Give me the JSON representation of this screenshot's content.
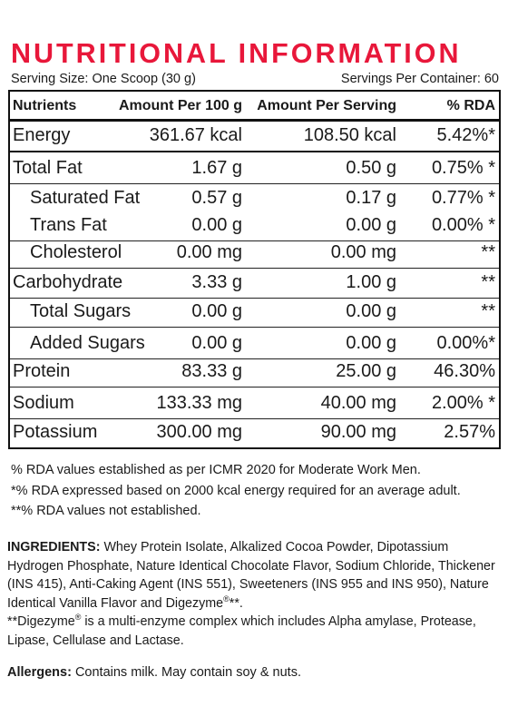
{
  "title": "NUTRITIONAL INFORMATION",
  "serving_size": "Serving Size: One Scoop (30 g)",
  "servings_per_container": "Servings Per Container: 60",
  "table": {
    "headers": [
      "Nutrients",
      "Amount Per 100 g",
      "Amount Per Serving",
      "% RDA"
    ],
    "rows": [
      {
        "nutrient": "Energy",
        "per100": "361.67 kcal",
        "perServing": "108.50 kcal",
        "rda": "5.42%*"
      },
      {
        "nutrient": "Total Fat",
        "per100": "1.67 g",
        "perServing": "0.50 g",
        "rda": "0.75% *"
      },
      {
        "nutrient": "Saturated Fat",
        "per100": "0.57 g",
        "perServing": "0.17 g",
        "rda": "0.77% *"
      },
      {
        "nutrient": "Trans Fat",
        "per100": "0.00 g",
        "perServing": "0.00 g",
        "rda": "0.00% *"
      },
      {
        "nutrient": "Cholesterol",
        "per100": "0.00 mg",
        "perServing": "0.00 mg",
        "rda": "**"
      },
      {
        "nutrient": "Carbohydrate",
        "per100": "3.33 g",
        "perServing": "1.00 g",
        "rda": "**"
      },
      {
        "nutrient": "Total Sugars",
        "per100": "0.00 g",
        "perServing": "0.00 g",
        "rda": "**"
      },
      {
        "nutrient": "Added Sugars",
        "per100": "0.00 g",
        "perServing": "0.00 g",
        "rda": "0.00%*"
      },
      {
        "nutrient": "Protein",
        "per100": "83.33 g",
        "perServing": "25.00 g",
        "rda": "46.30%"
      },
      {
        "nutrient": "Sodium",
        "per100": "133.33 mg",
        "perServing": "40.00 mg",
        "rda": "2.00% *"
      },
      {
        "nutrient": "Potassium",
        "per100": "300.00 mg",
        "perServing": "90.00 mg",
        "rda": "2.57%"
      }
    ]
  },
  "notes": [
    "% RDA values established as per ICMR 2020 for Moderate Work Men.",
    "*% RDA expressed based on 2000 kcal energy required for an average adult.",
    "**% RDA values not established."
  ],
  "ingredients": {
    "label": "INGREDIENTS:",
    "text": " Whey Protein Isolate, Alkalized Cocoa Powder, Dipotassium Hydrogen Phosphate, Nature Identical Chocolate Flavor, Sodium Chloride, Thickener (INS 415), Anti-Caking Agent (INS 551), Sweeteners (INS 955 and INS 950), Nature Identical Vanilla Flavor and Digezyme",
    "reg_mark": "®",
    "text_end": "**.",
    "digezyme_start": "**Digezyme",
    "digezyme_text": " is a multi-enzyme complex which includes Alpha amylase, Protease, Lipase, Cellulase and Lactase."
  },
  "allergens": {
    "label": "Allergens:",
    "text": " Contains milk. May contain soy & nuts."
  }
}
